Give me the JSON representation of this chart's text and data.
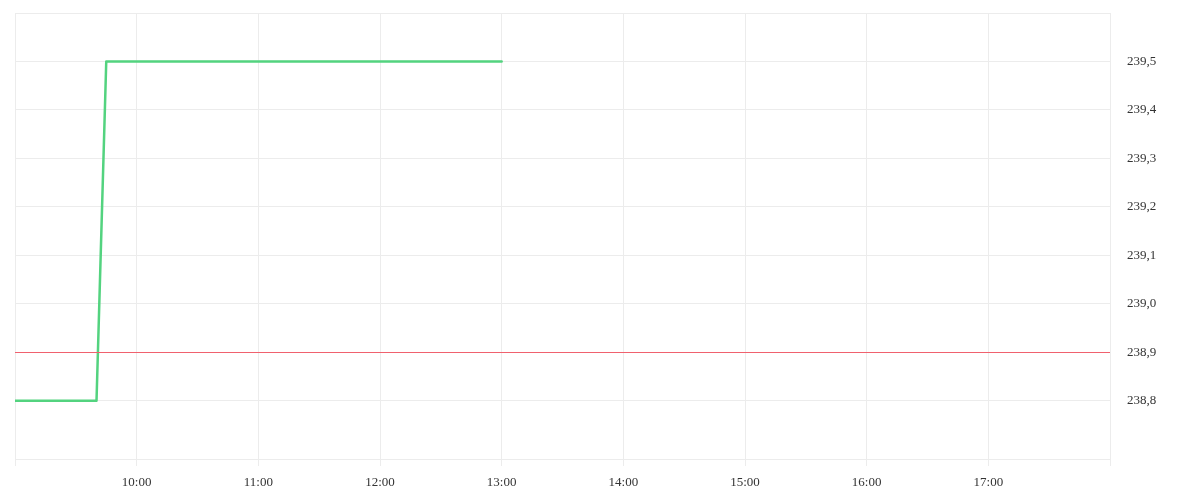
{
  "chart_data": {
    "type": "line",
    "series": [
      {
        "color": "#53d37f",
        "x": [
          9,
          9.67,
          9.75,
          13
        ],
        "values": [
          238.8,
          238.8,
          239.5,
          239.5
        ]
      }
    ],
    "xlim": [
      9,
      18
    ],
    "xticks": [
      {
        "value": 9,
        "label": null
      },
      {
        "value": 10,
        "label": "10:00"
      },
      {
        "value": 11,
        "label": "11:00"
      },
      {
        "value": 12,
        "label": "12:00"
      },
      {
        "value": 13,
        "label": "13:00"
      },
      {
        "value": 14,
        "label": "14:00"
      },
      {
        "value": 15,
        "label": "15:00"
      },
      {
        "value": 16,
        "label": "16:00"
      },
      {
        "value": 17,
        "label": "17:00"
      },
      {
        "value": 18,
        "label": null
      }
    ],
    "ylim": [
      238.68,
      239.6
    ],
    "yticks": [
      {
        "value": 238.8,
        "label": "238,8"
      },
      {
        "value": 238.9,
        "label": "238,9"
      },
      {
        "value": 239.0,
        "label": "239,0"
      },
      {
        "value": 239.1,
        "label": "239,1"
      },
      {
        "value": 239.2,
        "label": "239,2"
      },
      {
        "value": 239.3,
        "label": "239,3"
      },
      {
        "value": 239.4,
        "label": "239,4"
      },
      {
        "value": 239.5,
        "label": "239,5"
      },
      {
        "value": 239.6,
        "label": null
      }
    ],
    "ref_lines": [
      {
        "axis": "y",
        "value": 238.9,
        "color": "#f0616e"
      }
    ],
    "grid": true,
    "marker": "none",
    "line_style": "solid"
  }
}
